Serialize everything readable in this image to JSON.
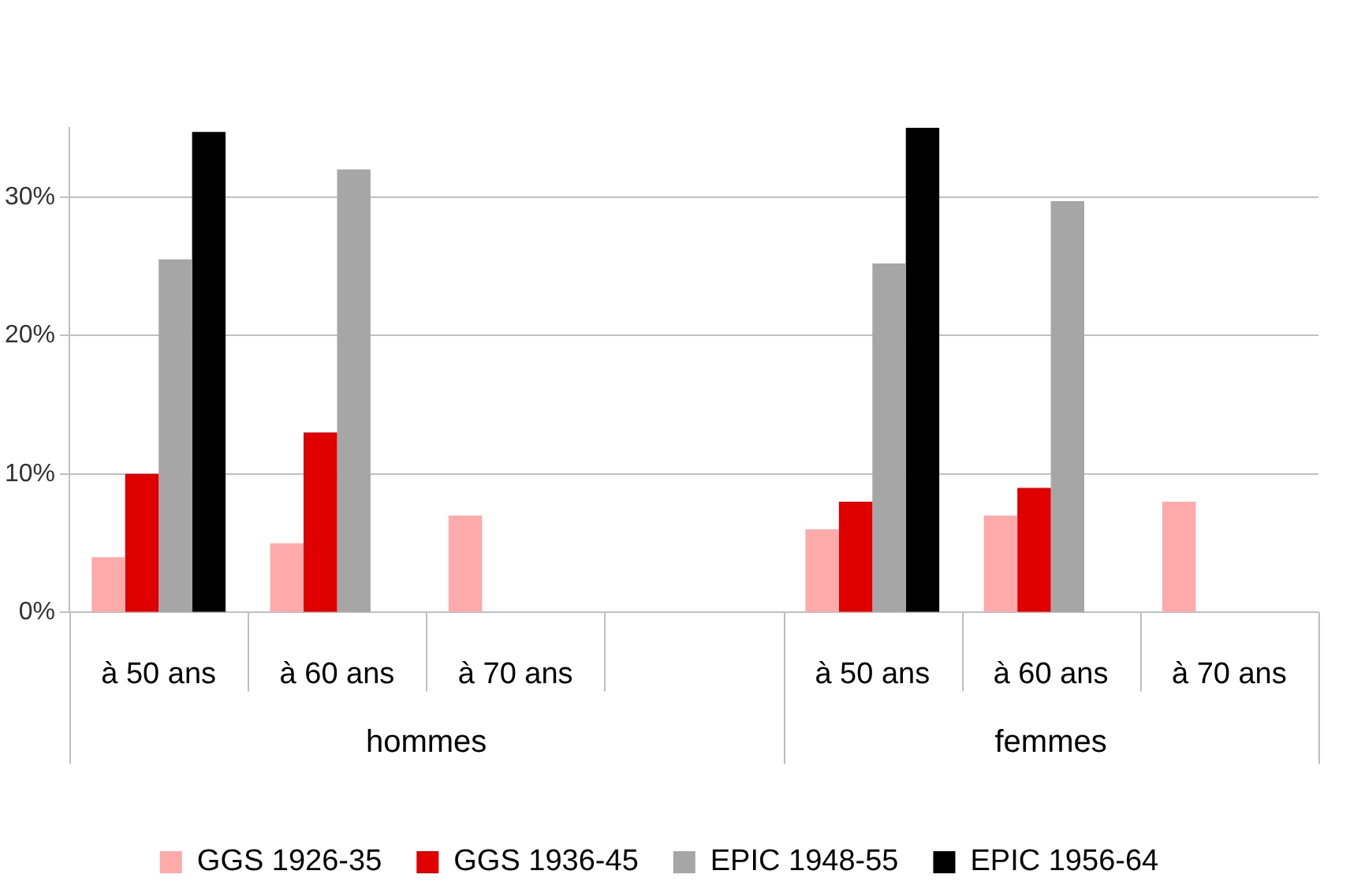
{
  "chart_data": {
    "type": "bar",
    "categories": [
      "à 50 ans",
      "à 60 ans",
      "à 70 ans",
      null,
      "à 50 ans",
      "à 60 ans",
      "à 70 ans"
    ],
    "series": [
      {
        "name": "GGS 1926-35",
        "color": "#ffaaaa",
        "values": [
          4,
          5,
          7,
          null,
          6,
          7,
          8
        ]
      },
      {
        "name": "GGS 1936-45",
        "color": "#e00000",
        "values": [
          10,
          13,
          null,
          null,
          8,
          9,
          null
        ]
      },
      {
        "name": "EPIC 1948-55",
        "color": "#a6a6a6",
        "values": [
          25.5,
          32,
          null,
          null,
          25.2,
          29.7,
          null
        ]
      },
      {
        "name": "EPIC 1956-64",
        "color": "#000000",
        "values": [
          34.7,
          null,
          null,
          null,
          35,
          null,
          null
        ]
      }
    ],
    "ylim": [
      0,
      35
    ],
    "yticks": [
      {
        "value": 0,
        "label": "0%"
      },
      {
        "value": 10,
        "label": "10%"
      },
      {
        "value": 20,
        "label": "20%"
      },
      {
        "value": 30,
        "label": "30%"
      }
    ],
    "grid": "y",
    "legend": "bottom",
    "annotations": [
      "hommes",
      "femmes"
    ]
  }
}
